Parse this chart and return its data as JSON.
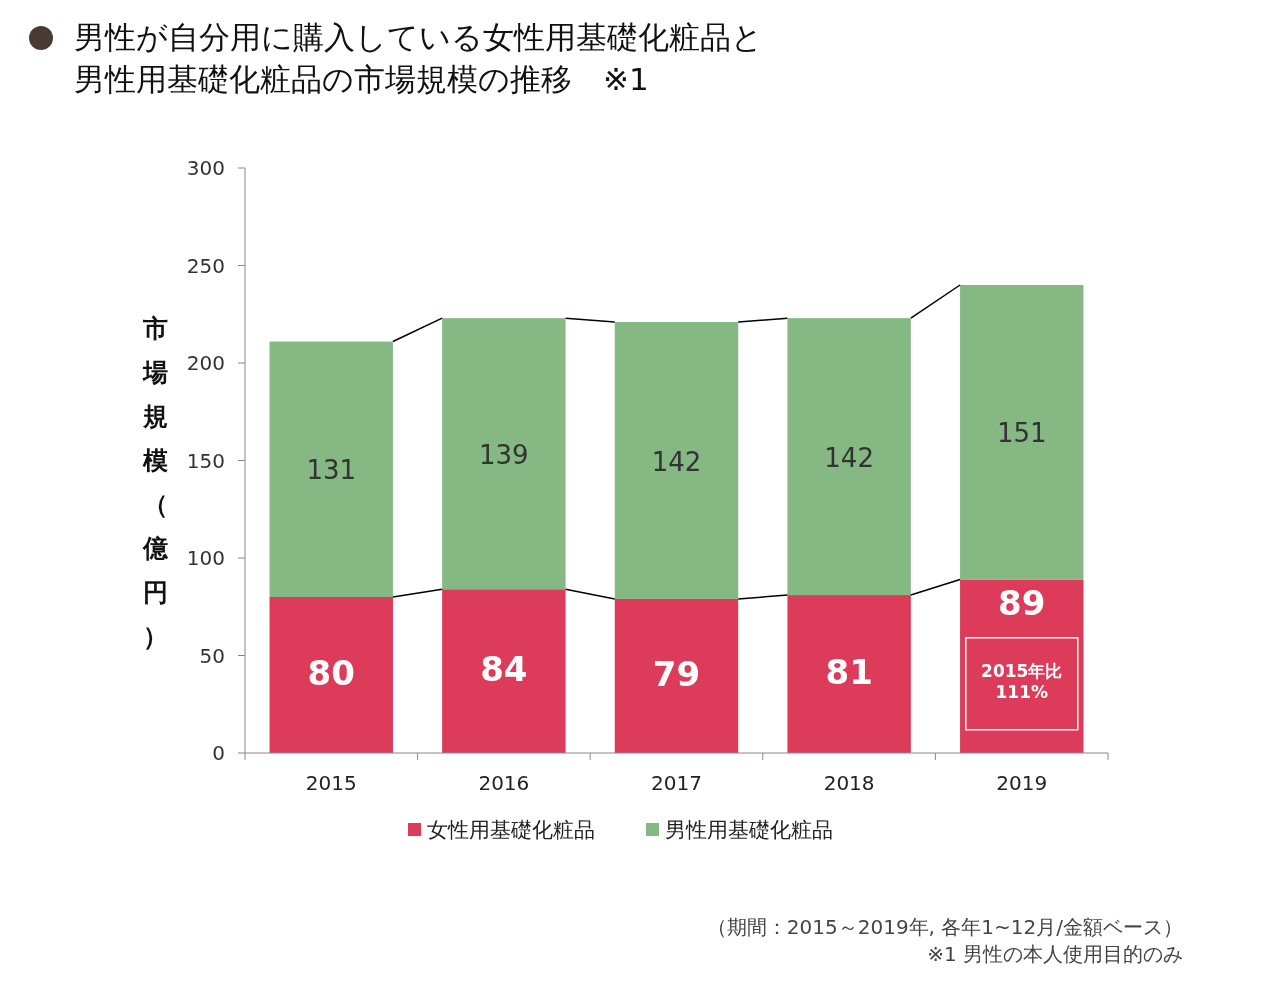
{
  "chart_data": {
    "type": "bar",
    "title": "男性が自分用に購入している女性用基礎化粧品と男性用基礎化粧品の市場規模の推移　※1",
    "ylabel": "市場規模（億円）",
    "categories": [
      "2015",
      "2016",
      "2017",
      "2018",
      "2019"
    ],
    "stacked": true,
    "series": [
      {
        "name": "女性用基礎化粧品",
        "color": "#dc3c5a",
        "values": [
          80,
          84,
          79,
          81,
          89
        ]
      },
      {
        "name": "男性用基礎化粧品",
        "color": "#86b884",
        "values": [
          131,
          139,
          142,
          142,
          151
        ]
      }
    ],
    "ylim": [
      0,
      300
    ],
    "yticks": [
      0,
      50,
      100,
      150,
      200,
      250,
      300
    ],
    "grid": false,
    "legend": "bottom",
    "data_labels": true,
    "annotations": [
      "2015年比111%",
      "（期間：2015～2019年, 各年1~12月/金額ベース）",
      "※1 男性の本人使用目的のみ"
    ]
  }
}
